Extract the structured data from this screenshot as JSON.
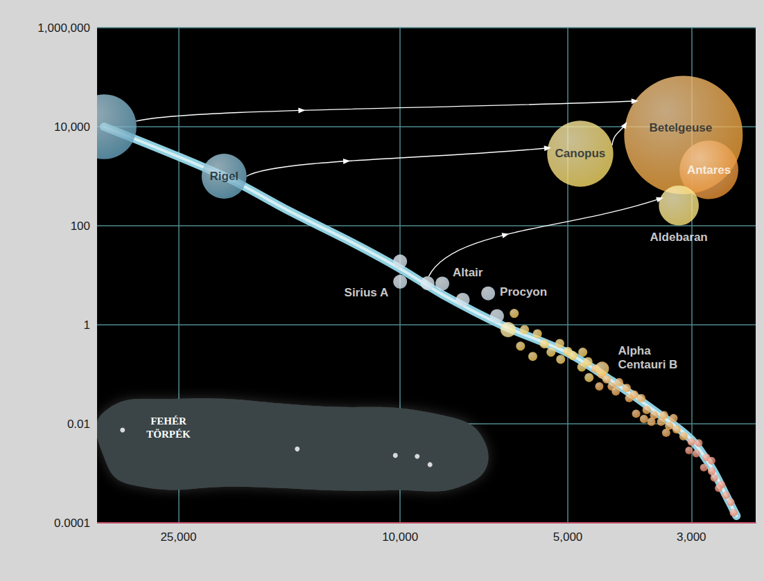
{
  "chart_data": {
    "type": "scatter",
    "log": true,
    "grid": true,
    "xlim": [
      35000,
      2300
    ],
    "xticks": [
      {
        "value": 25000,
        "label": "25,000"
      },
      {
        "value": 10000,
        "label": "10,000"
      },
      {
        "value": 5000,
        "label": "5,000"
      },
      {
        "value": 3000,
        "label": "3,000"
      }
    ],
    "ylim": [
      0.0001,
      1000000
    ],
    "yticks": [
      0.0001,
      0.01,
      1,
      100,
      {
        "value": 10000,
        "label": "10,000"
      },
      {
        "value": 1000000,
        "label": "1,000,000"
      }
    ],
    "series": [
      {
        "type": "line",
        "color": "#8fd0e0",
        "x": [
          34000,
          20700,
          15800,
          12200,
          10000,
          8400,
          6550,
          5000,
          4170,
          3400,
          3000,
          2760,
          2600,
          2490
        ],
        "values": [
          10000,
          1000,
          197,
          46,
          13.6,
          4.1,
          0.97,
          0.27,
          0.074,
          0.0147,
          0.0048,
          0.0013,
          0.00036,
          0.000138
        ]
      },
      {
        "type": "scatter",
        "color": "#c9dbe8",
        "x": [
          10000,
          10000,
          8930,
          8400,
          7720,
          6950,
          6700
        ],
        "values": [
          19,
          7.4,
          6.9,
          6.8,
          3.2,
          4.3,
          1.5
        ],
        "labels": [
          null,
          "Sirius A",
          null,
          "Altair",
          null,
          "Procyon",
          null
        ]
      },
      {
        "type": "scatter",
        "color": "#f8df8a",
        "x": [
          6400
        ],
        "values": [
          0.8
        ]
      },
      {
        "type": "scatter",
        "color": "#f1c447",
        "x": [
          6240,
          5980,
          6080,
          5780,
          5670,
          5510,
          5360,
          5170,
          5150,
          5000,
          4900,
          4700,
          4600,
          4720,
          4580
        ],
        "values": [
          1.7,
          0.8,
          0.37,
          0.23,
          0.66,
          0.41,
          0.28,
          0.42,
          0.2,
          0.29,
          0.24,
          0.28,
          0.18,
          0.14,
          0.086
        ]
      },
      {
        "type": "scatter",
        "color": "#ea9a3a",
        "x": [
          4460,
          4350,
          4260,
          4390,
          4170,
          4045,
          3920,
          4100,
          3800,
          3690,
          3880,
          3770,
          3610,
          3500,
          3400,
          3540,
          3290,
          3190,
          3330,
          3100,
          3650,
          3230,
          3360
        ],
        "values": [
          0.13,
          0.1,
          0.079,
          0.057,
          0.057,
          0.069,
          0.053,
          0.045,
          0.039,
          0.033,
          0.033,
          0.016,
          0.019,
          0.015,
          0.011,
          0.011,
          0.0091,
          0.0077,
          0.0066,
          0.0056,
          0.0125,
          0.013,
          0.015
        ]
      },
      {
        "type": "scatter",
        "color": "#e7785a",
        "x": [
          3000,
          2910,
          3030,
          2820,
          2940,
          2760,
          2850,
          2730,
          2650,
          2600,
          2550,
          2520,
          2760,
          2680
        ],
        "values": [
          0.0043,
          0.0041,
          0.0029,
          0.0021,
          0.0025,
          0.0018,
          0.0013,
          0.00081,
          0.00059,
          0.00036,
          0.00026,
          0.00016,
          0.0011,
          0.0005
        ]
      },
      {
        "type": "scatter",
        "color": "#f3c35a",
        "x": [
          4340
        ],
        "values": [
          0.13
        ],
        "labels": [
          "Alpha Centauri B"
        ]
      },
      {
        "type": "scatter",
        "color": "#5f9fba",
        "x": [
          34000,
          20700
        ],
        "values": [
          10000,
          1000
        ],
        "sizes": [
          104,
          72
        ],
        "labels": [
          null,
          "Rigel"
        ]
      },
      {
        "type": "scatter",
        "color": "#f5d860",
        "x": [
          4750
        ],
        "values": [
          2850
        ],
        "sizes": [
          106
        ],
        "labels": [
          "Canopus"
        ]
      },
      {
        "type": "scatter",
        "color": "#ec9a2c",
        "x": [
          3100
        ],
        "values": [
          6800
        ],
        "sizes": [
          190
        ],
        "labels": [
          "Betelgeuse"
        ]
      },
      {
        "type": "scatter",
        "color": "#e68a28",
        "x": [
          2790
        ],
        "values": [
          1350
        ],
        "sizes": [
          94
        ],
        "labels": [
          "Antares"
        ]
      },
      {
        "type": "scatter",
        "color": "#f9e070",
        "x": [
          3160
        ],
        "values": [
          257
        ],
        "sizes": [
          64
        ],
        "labels": [
          "Aldebaran"
        ]
      },
      {
        "type": "scatter",
        "color": "#ffffff",
        "x": [
          31500,
          15300,
          10200,
          9320,
          8840
        ],
        "values": [
          0.0075,
          0.0031,
          0.0023,
          0.0022,
          0.0015
        ]
      }
    ],
    "annotations": [
      {
        "text": "FEHÉR TÖRPÉK"
      }
    ]
  }
}
